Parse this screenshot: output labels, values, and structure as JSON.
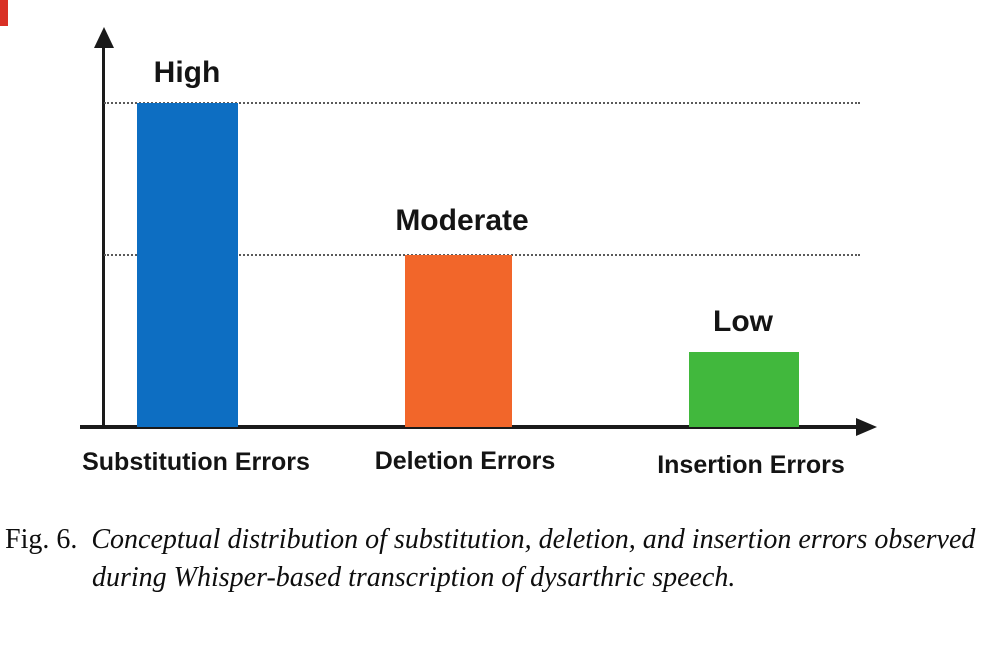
{
  "figure": {
    "caption": {
      "label": "Fig. 6.",
      "line1": "Conceptual distribution of substitution, deletion, and insertion errors observed",
      "line2": "during Whisper-based transcription of dysarthric speech."
    }
  },
  "chart_data": {
    "type": "bar",
    "title": "",
    "xlabel": "",
    "ylabel": "",
    "categories": [
      "Substitution Errors",
      "Deletion Errors",
      "Insertion Errors"
    ],
    "values": [
      1.0,
      0.53,
      0.23
    ],
    "value_labels": [
      "High",
      "Moderate",
      "Low"
    ],
    "colors": [
      "#0d6ec2",
      "#f2662a",
      "#41b83d"
    ],
    "gridlines_y": [
      1.0,
      0.53
    ],
    "gridline_style": "dotted",
    "axis_numeric_ticks": false,
    "legend": false
  },
  "artifact": {
    "color": "#d93025"
  }
}
